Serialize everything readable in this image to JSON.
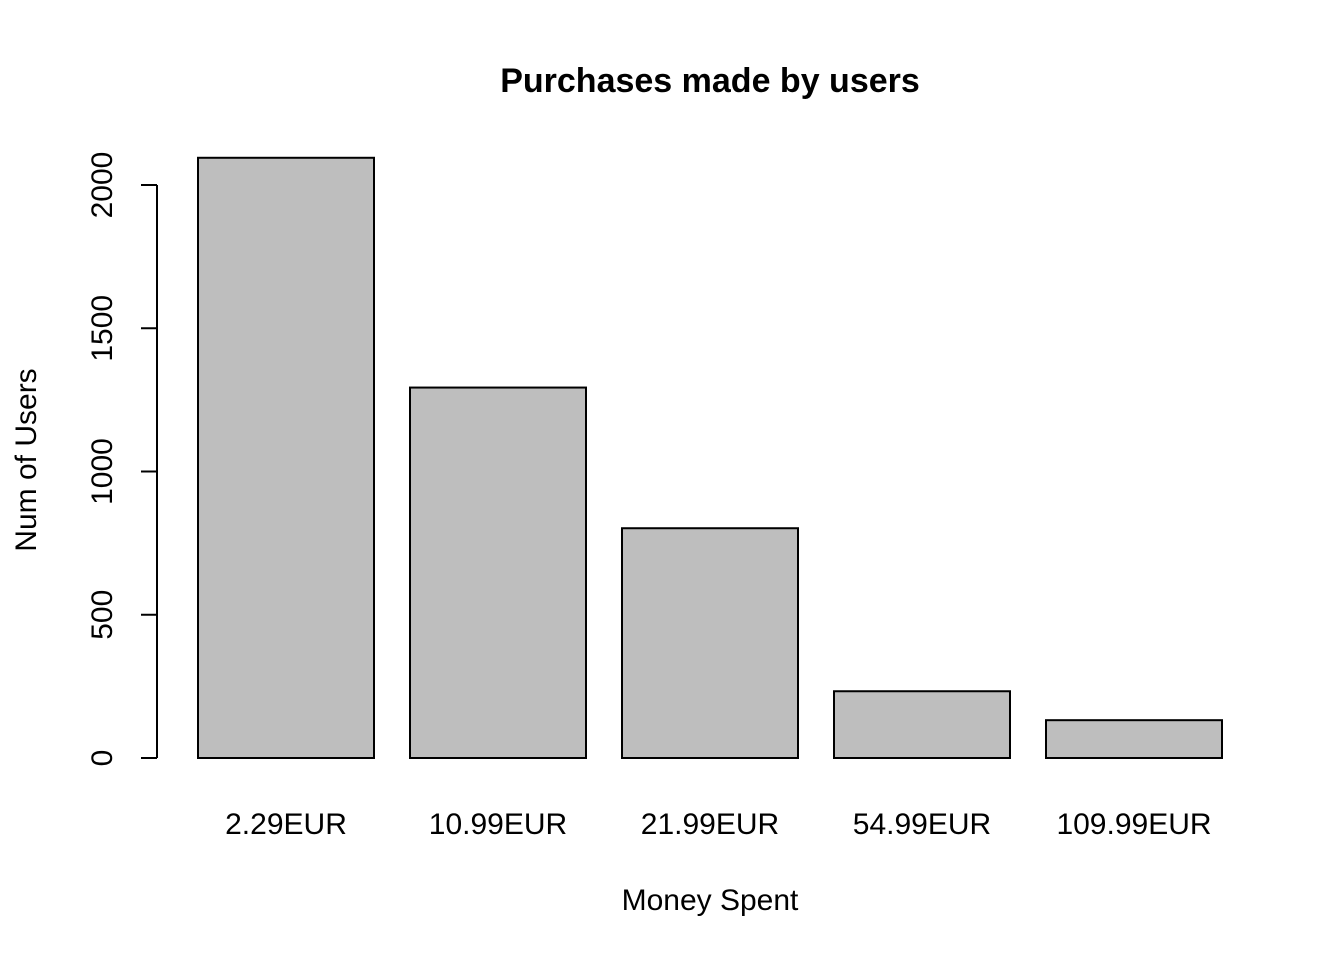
{
  "chart_data": {
    "type": "bar",
    "title": "Purchases made by users",
    "xlabel": "Money Spent",
    "ylabel": "Num of Users",
    "categories": [
      "2.29EUR",
      "10.99EUR",
      "21.99EUR",
      "54.99EUR",
      "109.99EUR"
    ],
    "values": [
      2095,
      1293,
      802,
      233,
      132
    ],
    "ylim": [
      0,
      2100
    ],
    "yticks": [
      0,
      500,
      1000,
      1500,
      2000
    ],
    "bar_color": "#bebebe",
    "border_color": "#000000",
    "grid": false
  }
}
